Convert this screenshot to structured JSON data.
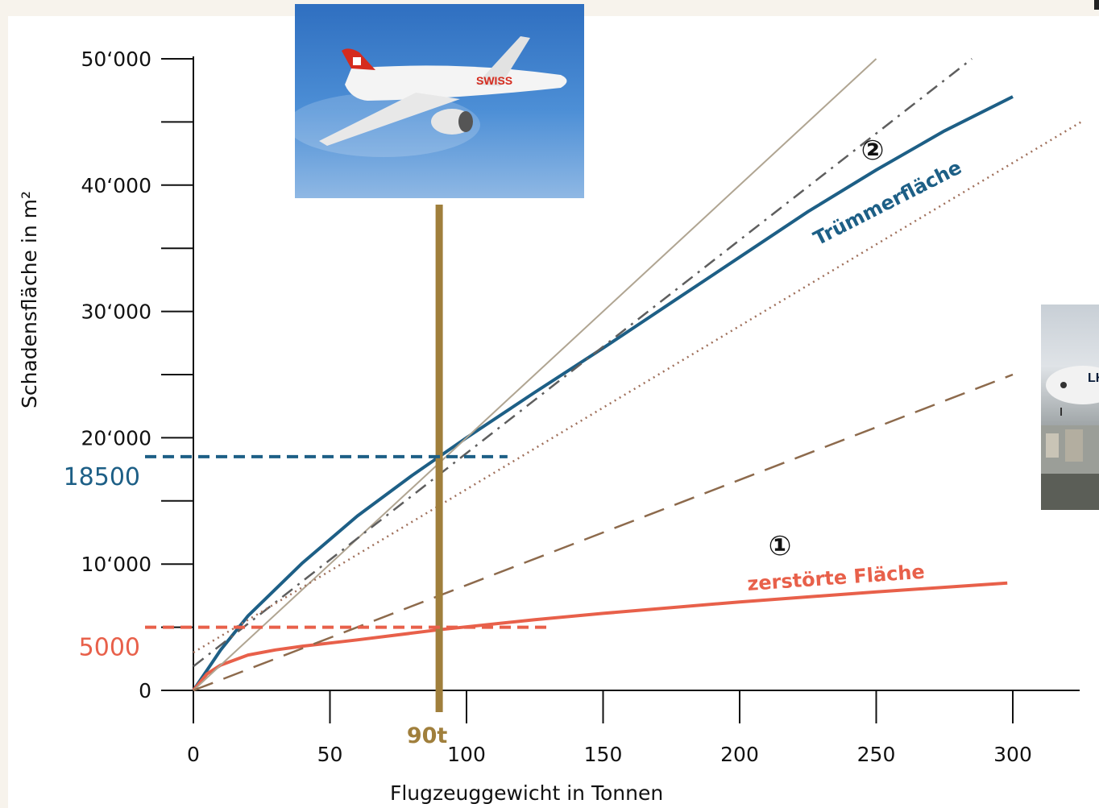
{
  "chart_data": {
    "type": "line",
    "xlabel": "Flugzeuggewicht in Tonnen",
    "ylabel": "Schadensfläche in m²",
    "xlim": [
      0,
      325
    ],
    "ylim": [
      0,
      50000
    ],
    "x_ticks": [
      0,
      50,
      100,
      150,
      200,
      250,
      300
    ],
    "x_tick_labels": [
      "0",
      "50",
      "100",
      "150",
      "200",
      "250",
      "300"
    ],
    "y_ticks": [
      0,
      10000,
      20000,
      30000,
      40000,
      50000
    ],
    "y_tick_labels": [
      "0",
      "10‘000",
      "20‘000",
      "30‘000",
      "40‘000",
      "50‘000"
    ],
    "y_minor_ticks": [
      5000,
      15000,
      25000,
      35000,
      45000
    ],
    "grid": false,
    "series": [
      {
        "name": "Trümmerfläche",
        "marker": "②",
        "color": "#1d5f86",
        "style": "solid",
        "x": [
          0,
          10,
          20,
          40,
          60,
          80,
          90,
          100,
          125,
          150,
          175,
          200,
          225,
          250,
          275,
          300
        ],
        "y": [
          0,
          3200,
          5900,
          10100,
          13800,
          17000,
          18500,
          20000,
          23600,
          27100,
          30700,
          34300,
          37900,
          41200,
          44300,
          47000
        ]
      },
      {
        "name": "zerstörte Fläche",
        "marker": "①",
        "color": "#e8604a",
        "style": "solid",
        "x": [
          0,
          5,
          10,
          20,
          30,
          40,
          60,
          90,
          125,
          150,
          200,
          250,
          298
        ],
        "y": [
          0,
          1300,
          2000,
          2800,
          3200,
          3500,
          4000,
          4800,
          5600,
          6100,
          7000,
          7800,
          8500
        ]
      },
      {
        "color": "#b0a592",
        "style": "thin",
        "x": [
          0,
          250
        ],
        "y": [
          0,
          50000
        ]
      },
      {
        "color": "#5e5e5e",
        "style": "dashdot",
        "x": [
          0,
          285
        ],
        "y": [
          1900,
          50000
        ]
      },
      {
        "color": "#a0705b",
        "style": "dotted",
        "x": [
          0,
          325
        ],
        "y": [
          3000,
          45000
        ]
      },
      {
        "color": "#8d6a4c",
        "style": "dashed",
        "x": [
          0,
          300
        ],
        "y": [
          0,
          25000
        ]
      }
    ],
    "reference_lines": [
      {
        "axis": "x",
        "value": 90,
        "label": "90t",
        "color": "#a07f3c"
      },
      {
        "axis": "y",
        "value": 18500,
        "label": "18500",
        "color": "#1d5f86",
        "x_to": 115
      },
      {
        "axis": "y",
        "value": 5000,
        "label": "5000",
        "color": "#e8604a",
        "x_to": 130
      }
    ]
  },
  "images": {
    "a320_alt": "SWISS",
    "a380_alt": "LH"
  }
}
